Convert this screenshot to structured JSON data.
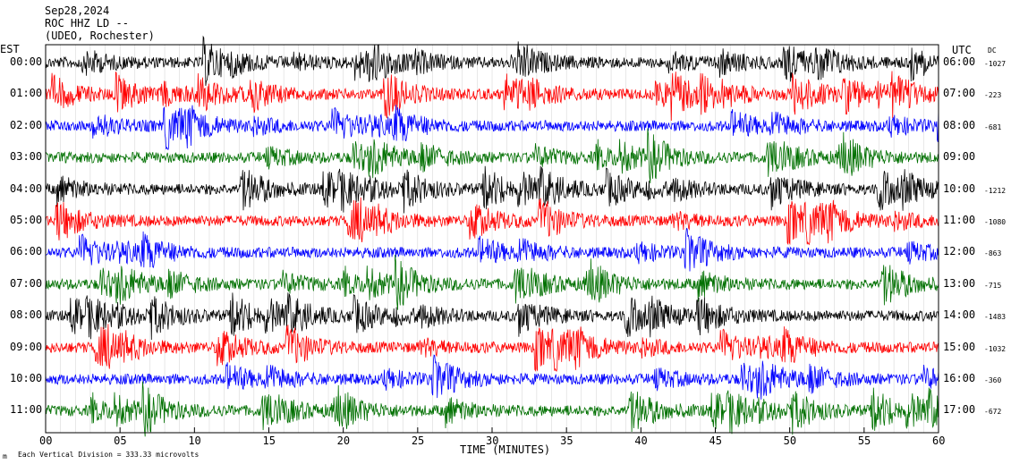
{
  "header": {
    "date": "Sep28,2024",
    "station": "ROC HHZ LD --",
    "location": "(UDEO, Rochester)"
  },
  "left_timezone": "EST",
  "right_timezone": "UTC",
  "dc_label": "DC",
  "footer": {
    "scale_text": "Each Vertical Division =  333.33 microvolts",
    "corner_mark": "m"
  },
  "colors": {
    "trace_colors": [
      "#000000",
      "#ff0000",
      "#0000ff",
      "#007000"
    ],
    "background": "#ffffff",
    "frame": "#000000",
    "gridline": "#0000ff"
  },
  "chart_data": {
    "type": "line",
    "title": "",
    "xlabel": "TIME (MINUTES)",
    "ylabel": "",
    "xlim": [
      0,
      60
    ],
    "x_ticks": [
      "00",
      "05",
      "10",
      "15",
      "20",
      "25",
      "30",
      "35",
      "40",
      "45",
      "50",
      "55",
      "60"
    ],
    "grid": "vertical lines every minute",
    "rows": [
      {
        "est": "00:00",
        "utc": "06:00",
        "dc": "-1027",
        "color": "#000000"
      },
      {
        "est": "01:00",
        "utc": "07:00",
        "dc": "-223",
        "color": "#ff0000"
      },
      {
        "est": "02:00",
        "utc": "08:00",
        "dc": "-681",
        "color": "#0000ff"
      },
      {
        "est": "03:00",
        "utc": "09:00",
        "dc": "",
        "color": "#007000"
      },
      {
        "est": "04:00",
        "utc": "10:00",
        "dc": "-1212",
        "color": "#000000"
      },
      {
        "est": "05:00",
        "utc": "11:00",
        "dc": "-1080",
        "color": "#ff0000"
      },
      {
        "est": "06:00",
        "utc": "12:00",
        "dc": "-863",
        "color": "#0000ff"
      },
      {
        "est": "07:00",
        "utc": "13:00",
        "dc": "-715",
        "color": "#007000"
      },
      {
        "est": "08:00",
        "utc": "14:00",
        "dc": "-1483",
        "color": "#000000"
      },
      {
        "est": "09:00",
        "utc": "15:00",
        "dc": "-1032",
        "color": "#ff0000"
      },
      {
        "est": "10:00",
        "utc": "16:00",
        "dc": "-360",
        "color": "#0000ff"
      },
      {
        "est": "11:00",
        "utc": "17:00",
        "dc": "-672",
        "color": "#007000"
      }
    ]
  }
}
